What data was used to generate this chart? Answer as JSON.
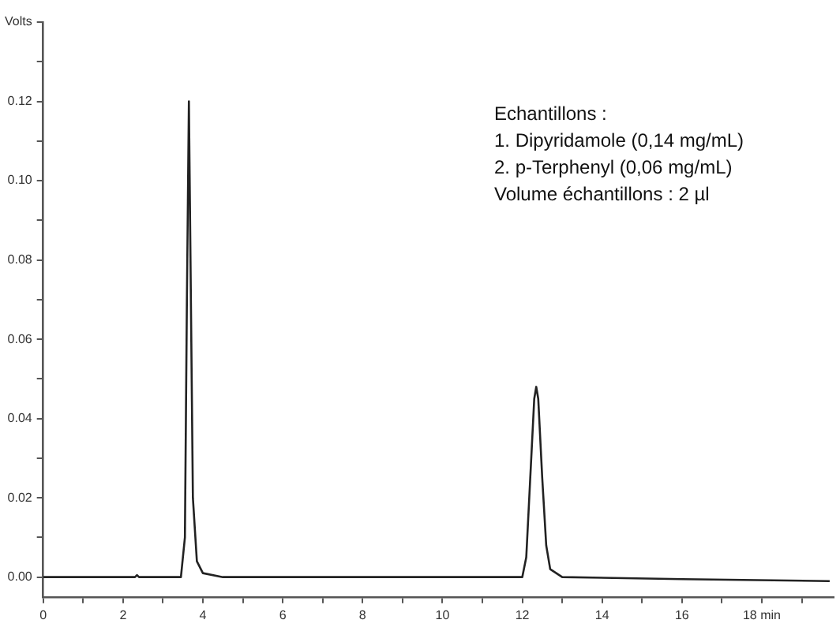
{
  "chart_data": {
    "type": "line",
    "color": "#222222",
    "marker": "none",
    "grid": false,
    "legend": false,
    "x": [
      0,
      2.3,
      2.35,
      2.4,
      3.45,
      3.55,
      3.6,
      3.65,
      3.7,
      3.75,
      3.85,
      4.0,
      4.5,
      8,
      12.0,
      12.1,
      12.2,
      12.3,
      12.35,
      12.4,
      12.5,
      12.6,
      12.7,
      13,
      16,
      19.7
    ],
    "values": [
      0,
      0,
      0.0005,
      0,
      0,
      0.01,
      0.07,
      0.12,
      0.07,
      0.02,
      0.004,
      0.001,
      0,
      0,
      0,
      0.005,
      0.025,
      0.045,
      0.048,
      0.045,
      0.025,
      0.008,
      0.002,
      0,
      -0.0005,
      -0.001
    ],
    "xlim": [
      0,
      19.8
    ],
    "xticks": [
      0,
      {
        "value": 1,
        "label": null
      },
      2,
      {
        "value": 3,
        "label": null
      },
      4,
      {
        "value": 5,
        "label": null
      },
      6,
      {
        "value": 7,
        "label": null
      },
      8,
      {
        "value": 9,
        "label": null
      },
      10,
      {
        "value": 11,
        "label": null
      },
      12,
      {
        "value": 13,
        "label": null
      },
      14,
      {
        "value": 15,
        "label": null
      },
      16,
      {
        "value": 17,
        "label": null
      },
      {
        "value": 18,
        "label": "18 min"
      },
      {
        "value": 19,
        "label": null
      }
    ],
    "ylim": [
      -0.005,
      0.14
    ],
    "yticks": [
      {
        "value": 0,
        "label": "0.00"
      },
      {
        "value": 0.01,
        "label": null
      },
      0.02,
      {
        "value": 0.03,
        "label": null
      },
      0.04,
      {
        "value": 0.05,
        "label": null
      },
      0.06,
      {
        "value": 0.07,
        "label": null
      },
      0.08,
      {
        "value": 0.09,
        "label": null
      },
      {
        "value": 0.1,
        "label": "0.10"
      },
      {
        "value": 0.11,
        "label": null
      },
      0.12,
      {
        "value": 0.13,
        "label": null
      },
      {
        "value": 0.14,
        "label": "Volts"
      }
    ],
    "annotations": [
      "Echantillons :",
      "1. Dipyridamole (0,14 mg/mL)",
      "2. p-Terphenyl (0,06 mg/mL)",
      "Volume échantillons : 2 µl"
    ]
  }
}
